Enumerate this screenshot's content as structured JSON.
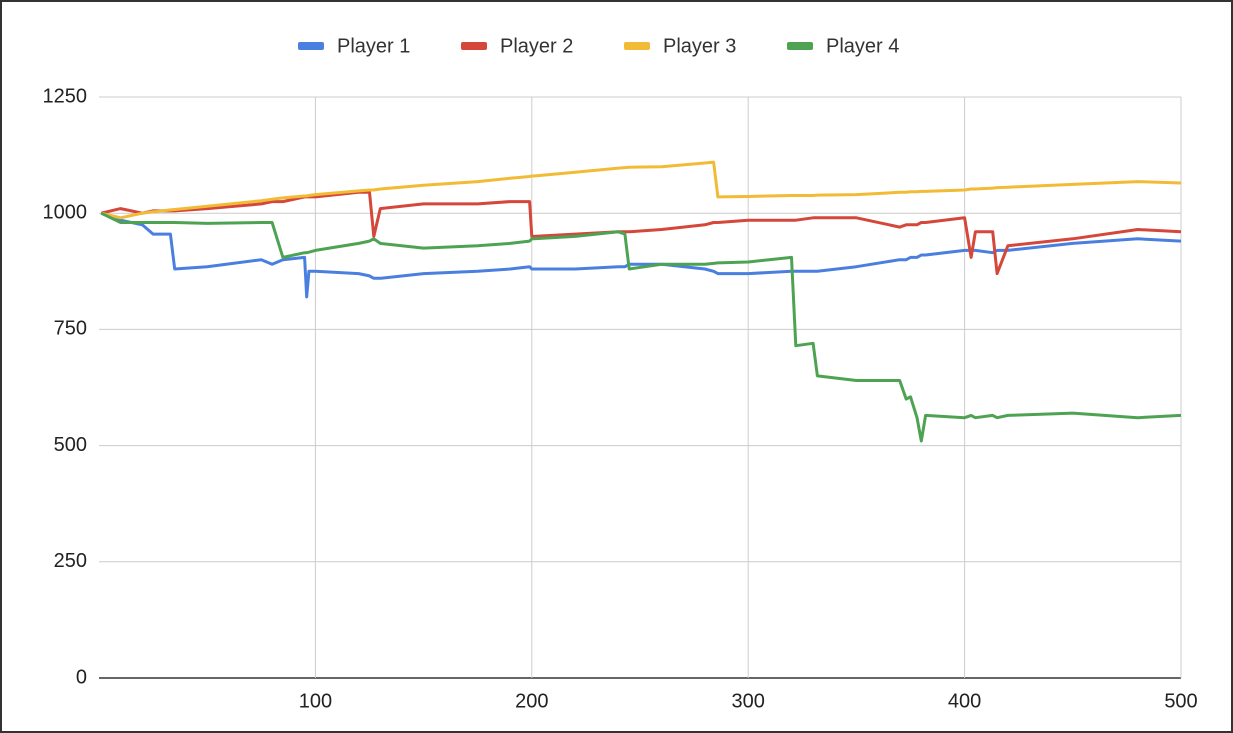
{
  "chart_data": {
    "type": "line",
    "x": [
      1,
      10,
      20,
      25,
      26,
      33,
      35,
      50,
      75,
      80,
      85,
      95,
      96,
      97,
      100,
      120,
      125,
      127,
      130,
      150,
      175,
      190,
      199,
      200,
      201,
      220,
      240,
      243,
      245,
      260,
      280,
      284,
      286,
      300,
      320,
      322,
      330,
      332,
      350,
      370,
      373,
      375,
      378,
      380,
      382,
      400,
      403,
      405,
      413,
      415,
      420,
      450,
      480,
      500
    ],
    "series": [
      {
        "name": "Player 1",
        "color": "#4a7fe0",
        "values": [
          1000,
          985,
          975,
          955,
          955,
          955,
          880,
          885,
          900,
          890,
          900,
          905,
          820,
          875,
          875,
          870,
          865,
          860,
          860,
          870,
          875,
          880,
          885,
          880,
          880,
          880,
          885,
          885,
          890,
          890,
          880,
          875,
          870,
          870,
          875,
          875,
          875,
          875,
          885,
          900,
          900,
          905,
          905,
          910,
          910,
          920,
          920,
          920,
          915,
          920,
          920,
          935,
          945,
          940
        ]
      },
      {
        "name": "Player 2",
        "color": "#d4473a",
        "values": [
          1000,
          1010,
          1000,
          1005,
          1005,
          1005,
          1005,
          1010,
          1020,
          1025,
          1025,
          1035,
          1035,
          1035,
          1035,
          1045,
          1045,
          950,
          1010,
          1020,
          1020,
          1025,
          1025,
          950,
          950,
          955,
          960,
          960,
          960,
          965,
          975,
          980,
          980,
          985,
          985,
          985,
          990,
          990,
          990,
          970,
          975,
          975,
          975,
          980,
          980,
          990,
          905,
          960,
          960,
          870,
          930,
          945,
          965,
          960
        ]
      },
      {
        "name": "Player 3",
        "color": "#f2bb36",
        "values": [
          1000,
          990,
          1000,
          1003,
          1003,
          1007,
          1008,
          1015,
          1027,
          1030,
          1033,
          1037,
          1037,
          1038,
          1040,
          1048,
          1050,
          1050,
          1052,
          1060,
          1068,
          1075,
          1079,
          1080,
          1080,
          1088,
          1097,
          1098,
          1099,
          1100,
          1108,
          1110,
          1035,
          1036,
          1038,
          1038,
          1038,
          1039,
          1040,
          1045,
          1045,
          1046,
          1046,
          1047,
          1047,
          1050,
          1052,
          1052,
          1054,
          1055,
          1056,
          1062,
          1068,
          1065
        ]
      },
      {
        "name": "Player 4",
        "color": "#4ea353",
        "values": [
          1000,
          980,
          980,
          980,
          980,
          980,
          980,
          978,
          980,
          980,
          905,
          915,
          915,
          916,
          920,
          935,
          940,
          945,
          935,
          925,
          930,
          935,
          940,
          945,
          945,
          950,
          960,
          955,
          880,
          890,
          890,
          892,
          893,
          895,
          905,
          715,
          720,
          650,
          640,
          640,
          600,
          605,
          560,
          510,
          565,
          560,
          565,
          560,
          565,
          560,
          565,
          570,
          560,
          565
        ]
      }
    ],
    "xlim": [
      0,
      500
    ],
    "xticks": [
      100,
      200,
      300,
      400,
      500
    ],
    "ylim": [
      0,
      1250
    ],
    "yticks": [
      0,
      250,
      500,
      750,
      1000,
      1250
    ],
    "grid": true,
    "legend": "top"
  }
}
